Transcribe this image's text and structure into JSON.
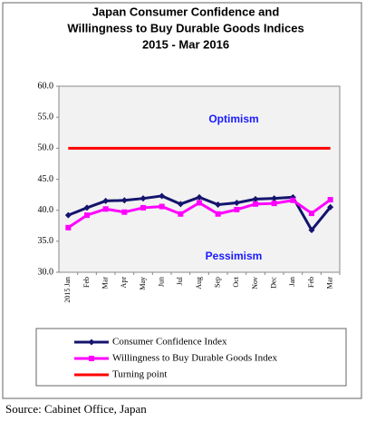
{
  "chart_data": {
    "type": "line",
    "title": [
      "Japan Consumer Confidence and",
      "Willingness to Buy Durable Goods Indices",
      "2015 - Mar  2016"
    ],
    "categories": [
      "2015 Jan",
      "Feb",
      "Mar",
      "Apr",
      "May",
      "Jun",
      "Jul",
      "Aug",
      "Sep",
      "Oct",
      "Nov",
      "Dec",
      "Jan",
      "Feb",
      "Mar"
    ],
    "series": [
      {
        "name": "Consumer Confidence Index",
        "color": "#14146e",
        "marker": "diamond",
        "values": [
          39.2,
          40.4,
          41.5,
          41.6,
          41.9,
          42.3,
          41.0,
          42.1,
          40.9,
          41.2,
          41.8,
          41.9,
          42.1,
          36.8,
          40.5
        ]
      },
      {
        "name": "Willingness to Buy Durable Goods Index",
        "color": "#ff00ff",
        "marker": "square",
        "values": [
          37.2,
          39.2,
          40.2,
          39.7,
          40.4,
          40.6,
          39.4,
          41.2,
          39.4,
          40.1,
          41.0,
          41.1,
          41.6,
          39.5,
          41.7
        ]
      },
      {
        "name": "Turning point",
        "color": "#ff0000",
        "marker": "none",
        "values": [
          50,
          50,
          50,
          50,
          50,
          50,
          50,
          50,
          50,
          50,
          50,
          50,
          50,
          50,
          50
        ]
      }
    ],
    "annotations": [
      "Optimism",
      "Pessimism"
    ],
    "ylim": [
      30,
      60
    ],
    "yticks": [
      {
        "value": 30,
        "label": "30.0"
      },
      {
        "value": 35,
        "label": "35.0"
      },
      {
        "value": 40,
        "label": "40.0"
      },
      {
        "value": 45,
        "label": "45.0"
      },
      {
        "value": 50,
        "label": "50.0"
      },
      {
        "value": 55,
        "label": "55.0"
      },
      {
        "value": 60,
        "label": "60.0"
      }
    ],
    "grid": false
  },
  "source": "Source: Cabinet Office, Japan"
}
